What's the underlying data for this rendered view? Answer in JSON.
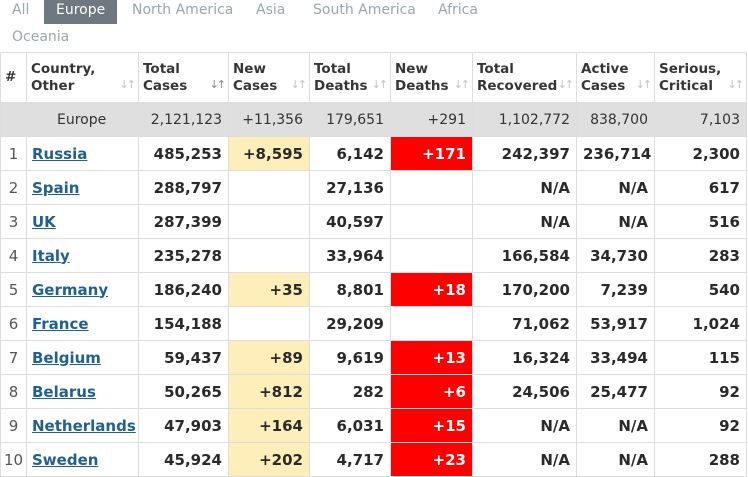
{
  "tabs": {
    "all": "All",
    "europe": "Europe",
    "north_america": "North America",
    "asia": "Asia",
    "south_america": "South America",
    "africa": "Africa",
    "oceania": "Oceania"
  },
  "headers": {
    "index": "#",
    "country_l1": "Country,",
    "country_l2": "Other",
    "total_cases_l1": "Total",
    "total_cases_l2": "Cases",
    "new_cases_l1": "New",
    "new_cases_l2": "Cases",
    "total_deaths_l1": "Total",
    "total_deaths_l2": "Deaths",
    "new_deaths_l1": "New",
    "new_deaths_l2": "Deaths",
    "total_recovered_l1": "Total",
    "total_recovered_l2": "Recovered",
    "active_cases_l1": "Active",
    "active_cases_l2": "Cases",
    "serious_l1": "Serious,",
    "serious_l2": "Critical"
  },
  "colors": {
    "tab_active_bg": "#6d7880",
    "new_cases_highlight": "#fdeeba",
    "new_deaths_highlight": "#ff0000",
    "link": "#20618d",
    "total_row_bg": "#dfdfdf"
  },
  "total_row": {
    "country": "Europe",
    "total_cases": "2,121,123",
    "new_cases": "+11,356",
    "total_deaths": "179,651",
    "new_deaths": "+291",
    "total_recovered": "1,102,772",
    "active_cases": "838,700",
    "serious": "7,103"
  },
  "rows": [
    {
      "idx": "1",
      "country": "Russia",
      "total_cases": "485,253",
      "new_cases": "+8,595",
      "total_deaths": "6,142",
      "new_deaths": "+171",
      "total_recovered": "242,397",
      "active_cases": "236,714",
      "serious": "2,300"
    },
    {
      "idx": "2",
      "country": "Spain",
      "total_cases": "288,797",
      "new_cases": "",
      "total_deaths": "27,136",
      "new_deaths": "",
      "total_recovered": "N/A",
      "active_cases": "N/A",
      "serious": "617"
    },
    {
      "idx": "3",
      "country": "UK",
      "total_cases": "287,399",
      "new_cases": "",
      "total_deaths": "40,597",
      "new_deaths": "",
      "total_recovered": "N/A",
      "active_cases": "N/A",
      "serious": "516"
    },
    {
      "idx": "4",
      "country": "Italy",
      "total_cases": "235,278",
      "new_cases": "",
      "total_deaths": "33,964",
      "new_deaths": "",
      "total_recovered": "166,584",
      "active_cases": "34,730",
      "serious": "283"
    },
    {
      "idx": "5",
      "country": "Germany",
      "total_cases": "186,240",
      "new_cases": "+35",
      "total_deaths": "8,801",
      "new_deaths": "+18",
      "total_recovered": "170,200",
      "active_cases": "7,239",
      "serious": "540"
    },
    {
      "idx": "6",
      "country": "France",
      "total_cases": "154,188",
      "new_cases": "",
      "total_deaths": "29,209",
      "new_deaths": "",
      "total_recovered": "71,062",
      "active_cases": "53,917",
      "serious": "1,024"
    },
    {
      "idx": "7",
      "country": "Belgium",
      "total_cases": "59,437",
      "new_cases": "+89",
      "total_deaths": "9,619",
      "new_deaths": "+13",
      "total_recovered": "16,324",
      "active_cases": "33,494",
      "serious": "115"
    },
    {
      "idx": "8",
      "country": "Belarus",
      "total_cases": "50,265",
      "new_cases": "+812",
      "total_deaths": "282",
      "new_deaths": "+6",
      "total_recovered": "24,506",
      "active_cases": "25,477",
      "serious": "92"
    },
    {
      "idx": "9",
      "country": "Netherlands",
      "total_cases": "47,903",
      "new_cases": "+164",
      "total_deaths": "6,031",
      "new_deaths": "+15",
      "total_recovered": "N/A",
      "active_cases": "N/A",
      "serious": "92"
    },
    {
      "idx": "10",
      "country": "Sweden",
      "total_cases": "45,924",
      "new_cases": "+202",
      "total_deaths": "4,717",
      "new_deaths": "+23",
      "total_recovered": "N/A",
      "active_cases": "N/A",
      "serious": "288"
    }
  ]
}
